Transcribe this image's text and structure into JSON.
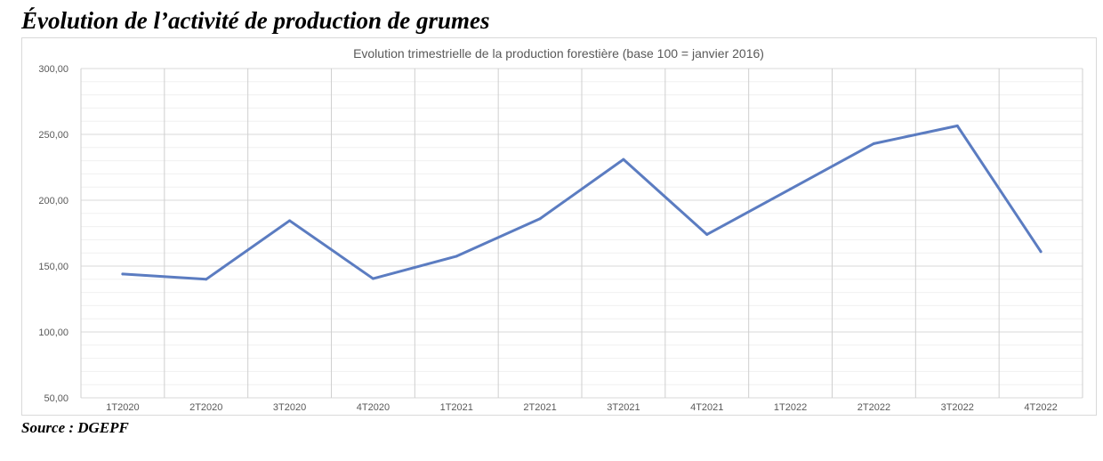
{
  "page": {
    "heading": "Évolution de l’activité de production de grumes",
    "source": "Source : DGEPF"
  },
  "chart_data": {
    "type": "line",
    "title": "Evolution trimestrielle de la production forestière (base 100 = janvier 2016)",
    "categories": [
      "1T2020",
      "2T2020",
      "3T2020",
      "4T2020",
      "1T2021",
      "2T2021",
      "3T2021",
      "4T2021",
      "1T2022",
      "2T2022",
      "3T2022",
      "4T2022"
    ],
    "series": [
      {
        "values": [
          144,
          140,
          184.5,
          140.5,
          157.5,
          186,
          231,
          174,
          208.5,
          243,
          256.5,
          161
        ],
        "color": "#5b7cc1"
      }
    ],
    "ylim": [
      50,
      300
    ],
    "yticks": [
      "50,00",
      "100,00",
      "150,00",
      "200,00",
      "250,00",
      "300,00"
    ],
    "grid": {
      "horizontal": true,
      "vertical": true
    },
    "legend": "none",
    "colors": {
      "line": "#5b7cc1",
      "major_grid": "#d9d9d9",
      "minor_grid": "#f0f0f0",
      "vertical_grid": "#cfcfcf",
      "axis_text": "#595959"
    }
  }
}
